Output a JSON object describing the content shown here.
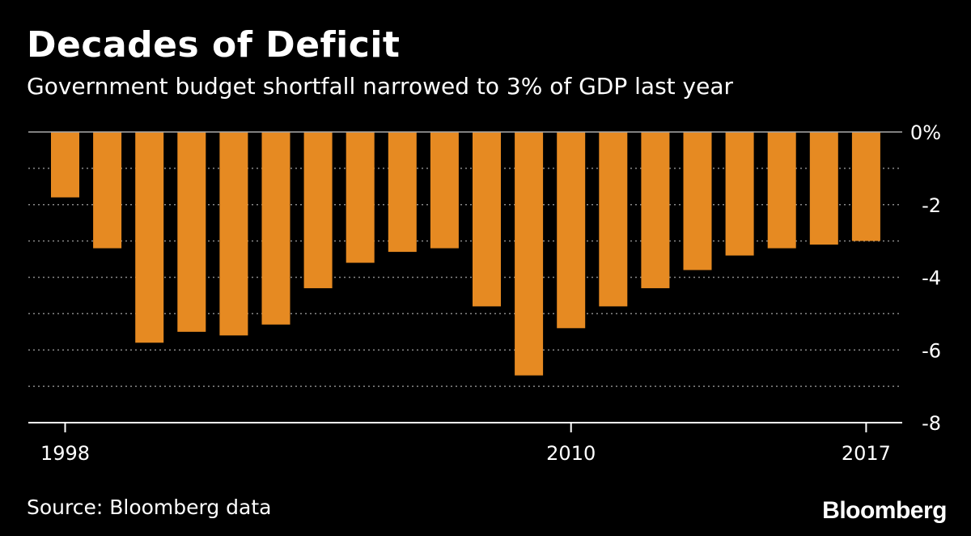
{
  "header": {
    "title": "Decades of Deficit",
    "subtitle": "Government budget shortfall narrowed to 3% of GDP last year"
  },
  "footer": {
    "source": "Source: Bloomberg data",
    "brand": "Bloomberg"
  },
  "colors": {
    "background": "#000000",
    "bar": "#E68A22",
    "text": "#ffffff",
    "grid": "#888888"
  },
  "chart_data": {
    "type": "bar",
    "categories": [
      "1998",
      "1999",
      "2000",
      "2001",
      "2002",
      "2003",
      "2004",
      "2005",
      "2006",
      "2007",
      "2008",
      "2009",
      "2010",
      "2011",
      "2012",
      "2013",
      "2014",
      "2015",
      "2016",
      "2017"
    ],
    "values": [
      -1.8,
      -3.2,
      -5.8,
      -5.5,
      -5.6,
      -5.3,
      -4.3,
      -3.6,
      -3.3,
      -3.2,
      -4.8,
      -6.7,
      -5.4,
      -4.8,
      -4.3,
      -3.8,
      -3.4,
      -3.2,
      -3.1,
      -3.0
    ],
    "ylim": [
      -8,
      0
    ],
    "y_ticks": [
      {
        "value": 0,
        "label": "0%"
      },
      {
        "value": -2,
        "label": "-2"
      },
      {
        "value": -4,
        "label": "-4"
      },
      {
        "value": -6,
        "label": "-6"
      },
      {
        "value": -8,
        "label": "-8"
      }
    ],
    "x_tick_labels": [
      {
        "category": "1998",
        "label": "1998"
      },
      {
        "category": "2010",
        "label": "2010"
      },
      {
        "category": "2017",
        "label": "2017"
      }
    ],
    "grid": true,
    "legend": "none"
  }
}
